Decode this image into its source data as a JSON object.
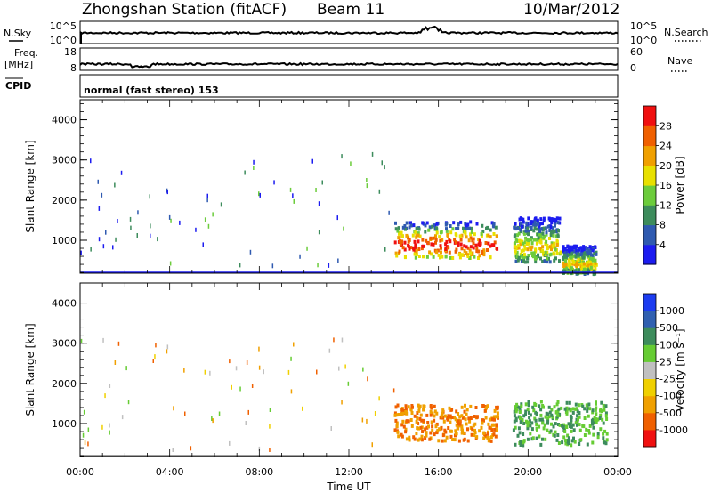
{
  "header": {
    "station": "Zhongshan Station (fitACF)",
    "beam": "Beam 11",
    "date": "10/Mar/2012"
  },
  "strips": {
    "nsky_label": "N.Sky",
    "nsky_ticks": [
      "10^5",
      "10^0"
    ],
    "nsearch_label": "N.Search",
    "nsearch_ticks": [
      "10^5",
      "10^0"
    ],
    "freq_label_1": "Freq.",
    "freq_label_2": "[MHz]",
    "freq_ticks": [
      "8",
      "18"
    ],
    "nave_label": "Nave",
    "nave_ticks": [
      "60",
      "0"
    ],
    "cpid_label": "CPID",
    "cpid_text": "normal (fast stereo) 153"
  },
  "chart_data": [
    {
      "type": "heatmap",
      "name": "power",
      "ylabel": "Slant Range [km]",
      "xlabel": "Time UT",
      "xlim_hours": [
        0,
        24
      ],
      "x_ticks": [
        "00:00",
        "04:00",
        "08:00",
        "12:00",
        "16:00",
        "20:00",
        "00:00"
      ],
      "ylim": [
        180,
        4500
      ],
      "y_ticks": [
        1000,
        2000,
        3000,
        4000
      ],
      "colorbar_label": "Power [dB]",
      "colorbar_ticks": [
        "4",
        "8",
        "12",
        "16",
        "20",
        "24",
        "28"
      ],
      "colorbar_colors": [
        "#1c1cf0",
        "#2f5ab0",
        "#3d8c5c",
        "#6ccc3c",
        "#e8e000",
        "#f0a000",
        "#f06000",
        "#f01010"
      ],
      "regions": [
        {
          "t0": 14.0,
          "t1": 18.6,
          "r0": 600,
          "r1": 1500,
          "level": "high"
        },
        {
          "t0": 19.3,
          "t1": 21.4,
          "r0": 500,
          "r1": 1600,
          "level": "mid"
        },
        {
          "t0": 21.5,
          "t1": 23.0,
          "r0": 200,
          "r1": 900,
          "level": "mid"
        }
      ]
    },
    {
      "type": "heatmap",
      "name": "velocity",
      "ylabel": "Slant Range [km]",
      "xlabel": "Time UT",
      "xlim_hours": [
        0,
        24
      ],
      "x_ticks": [
        "00:00",
        "04:00",
        "08:00",
        "12:00",
        "16:00",
        "20:00",
        "00:00"
      ],
      "ylim": [
        180,
        4500
      ],
      "y_ticks": [
        1000,
        2000,
        3000,
        4000
      ],
      "colorbar_label": "Velocity [m s⁻¹]",
      "colorbar_ticks": [
        "1000",
        "500",
        "100",
        "25",
        "-25",
        "-100",
        "-500",
        "-1000"
      ],
      "colorbar_colors": [
        "#1c3cf0",
        "#3060b0",
        "#3d8c5c",
        "#66cc33",
        "#c0c0c0",
        "#f0d000",
        "#f0a000",
        "#f06000",
        "#f01010"
      ],
      "regions": [
        {
          "t0": 14.0,
          "t1": 18.6,
          "r0": 600,
          "r1": 1500,
          "level": "negative"
        },
        {
          "t0": 19.3,
          "t1": 23.5,
          "r0": 500,
          "r1": 1600,
          "level": "positive"
        }
      ]
    }
  ]
}
